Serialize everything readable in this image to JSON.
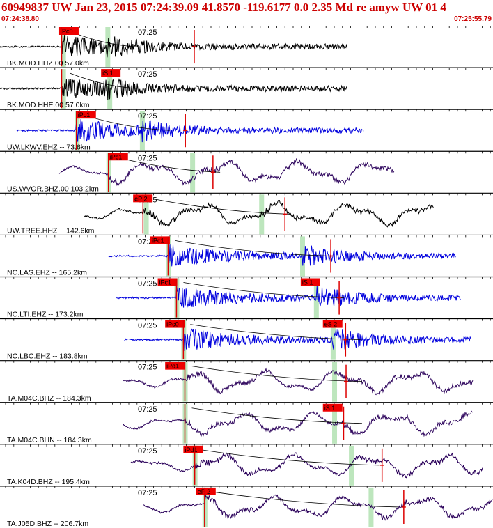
{
  "header": {
    "title": "60949837 UW Jan 23, 2015 07:24:39.09   41.8570 -119.6177   0.0 2.35 Md re amyw UW 01    4",
    "start_time": "07:24:38.80",
    "end_time": "07:25:55.79"
  },
  "colors": {
    "header_text": "#cc0000",
    "pick_flag": "#ee0000",
    "pick_marker": "#dd0000",
    "predicted_phase": "#bde6bd",
    "trace_black": "#000000",
    "trace_blue": "#0000dd",
    "trace_purple": "#2a005a",
    "divider": "#000000"
  },
  "traces": [
    {
      "label": "BK.MOD.HHZ.00 57.0km",
      "time_label": "07:25",
      "pick": "iPc0",
      "color": "black",
      "start": 0.0,
      "end": 0.705,
      "green": [
        0.128,
        0.218
      ],
      "pick_x": 0.12,
      "marker_x": 0.394,
      "wave": "burst",
      "onset": 0.125,
      "s_onset": 0.215
    },
    {
      "label": "BK.MOD.HHE.00 57.0km",
      "time_label": "07:25",
      "pick": "iS 1",
      "color": "black",
      "start": 0.0,
      "end": 0.705,
      "green": [
        0.128,
        0.222
      ],
      "pick_x": 0.205,
      "marker_x": null,
      "wave": "burst",
      "onset": 0.125,
      "s_onset": 0.21
    },
    {
      "label": "UW.LKWV.EHZ -- 73.6km",
      "time_label": "07:25",
      "pick": "iPc1",
      "color": "blue",
      "start": 0.033,
      "end": 0.738,
      "green": [
        0.156,
        0.288
      ],
      "pick_x": 0.155,
      "marker_x": 0.376,
      "wave": "burst",
      "onset": 0.155,
      "s_onset": 0.285
    },
    {
      "label": "US.WVOR.BHZ.00 103.2km",
      "time_label": "07:25",
      "pick": "iPc1",
      "color": "purple",
      "start": 0.12,
      "end": 0.8,
      "green": [
        0.22,
        0.39
      ],
      "pick_x": 0.22,
      "marker_x": 0.432,
      "wave": "longperiod",
      "onset": 0.22,
      "s_onset": 0.39
    },
    {
      "label": "UW.TREE.HHZ -- 142.6km",
      "time_label": "07:25",
      "pick": "eP 2",
      "color": "black",
      "start": 0.17,
      "end": 0.88,
      "green": [
        0.296,
        0.53
      ],
      "pick_x": 0.27,
      "marker_x": 0.578,
      "wave": "longperiod",
      "onset": 0.29,
      "s_onset": 0.53
    },
    {
      "label": "NC.LAS.EHZ -- 165.2km",
      "time_label": "07:25",
      "pick": "iPc1",
      "color": "blue",
      "start": 0.22,
      "end": 0.925,
      "green": [
        0.341,
        0.613
      ],
      "pick_x": 0.305,
      "marker_x": 0.671,
      "wave": "burst",
      "onset": 0.341,
      "s_onset": 0.613
    },
    {
      "label": "NC.LTI.EHZ -- 173.2km",
      "time_label": "07:25",
      "pick": "iPc1",
      "color": "blue",
      "start": 0.235,
      "end": 0.935,
      "green": [
        0.358,
        0.641
      ],
      "pick_x": 0.32,
      "marker_x": 0.688,
      "wave": "burst",
      "onset": 0.358,
      "s_onset": 0.641,
      "s_pick": "iS 1",
      "s_pick_x": 0.61
    },
    {
      "label": "NC.LBC.EHZ -- 183.8km",
      "time_label": "07:25",
      "pick": "iPc0",
      "color": "blue",
      "start": 0.252,
      "end": 0.955,
      "green": [
        0.372,
        0.675
      ],
      "pick_x": 0.335,
      "marker_x": 0.701,
      "wave": "burst",
      "onset": 0.372,
      "s_onset": 0.675,
      "s_pick": "eS 2",
      "s_pick_x": 0.655
    },
    {
      "label": "TA.M04C.BHZ -- 184.3km",
      "time_label": "07:25",
      "pick": "iPd1",
      "color": "purple",
      "start": 0.25,
      "end": 0.96,
      "green": [
        0.375,
        0.678
      ],
      "pick_x": 0.335,
      "marker_x": 0.702,
      "wave": "longperiod",
      "onset": 0.375,
      "s_onset": 0.678
    },
    {
      "label": "TA.M04C.BHN -- 184.3km",
      "time_label": "07:25",
      "pick": "iS 1",
      "color": "purple",
      "start": 0.25,
      "end": 0.96,
      "green": [
        0.375,
        0.678
      ],
      "pick_x": 0.655,
      "marker_x": 0.697,
      "wave": "longperiod",
      "onset": 0.375,
      "s_onset": 0.678
    },
    {
      "label": "TA.K04D.BHZ -- 195.4km",
      "time_label": "07:25",
      "pick": "iPd1",
      "color": "purple",
      "start": 0.265,
      "end": 0.98,
      "green": [
        0.395,
        0.712
      ],
      "pick_x": 0.372,
      "marker_x": 0.775,
      "wave": "longperiod",
      "onset": 0.395,
      "s_onset": 0.712
    },
    {
      "label": "TA.J05D.BHZ -- 206.7km",
      "time_label": "07:25",
      "pick": "eP 2",
      "color": "purple",
      "start": 0.29,
      "end": 1.0,
      "green": [
        0.415,
        0.752
      ],
      "pick_x": 0.398,
      "marker_x": 0.819,
      "wave": "longperiod",
      "onset": 0.415,
      "s_onset": 0.752
    }
  ]
}
